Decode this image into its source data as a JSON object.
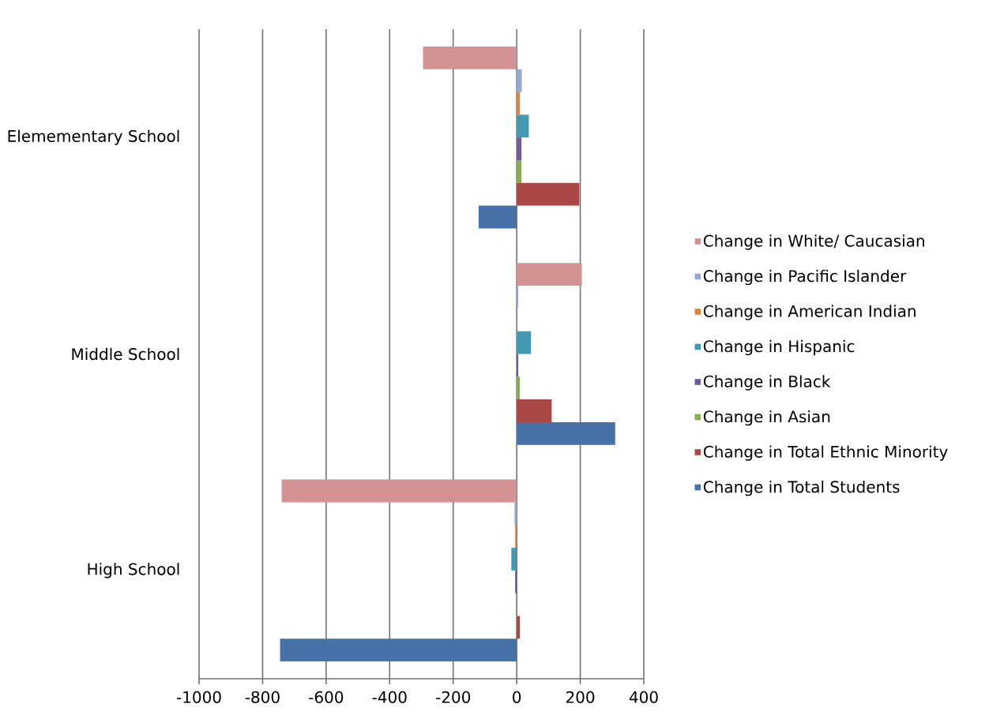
{
  "chart_data": {
    "type": "bar",
    "orientation": "horizontal",
    "categories": [
      "Elemementary School",
      "Middle School",
      "High School"
    ],
    "series": [
      {
        "name": "Change in White/ Caucasian",
        "color": "#d39392",
        "values": [
          -295,
          205,
          -740
        ]
      },
      {
        "name": "Change in Pacific Islander",
        "color": "#95a9d3",
        "values": [
          16,
          5,
          -7
        ]
      },
      {
        "name": "Change in American Indian",
        "color": "#e5833a",
        "values": [
          10,
          0,
          -5
        ]
      },
      {
        "name": "Change in Hispanic",
        "color": "#4299b1",
        "values": [
          38,
          45,
          -17
        ]
      },
      {
        "name": "Change in Black",
        "color": "#725a96",
        "values": [
          15,
          5,
          -5
        ]
      },
      {
        "name": "Change in Asian",
        "color": "#8aab4f",
        "values": [
          15,
          10,
          -2
        ]
      },
      {
        "name": "Change in Total Ethnic Minority",
        "color": "#a84744",
        "values": [
          197,
          110,
          10
        ]
      },
      {
        "name": "Change in Total Students",
        "color": "#4672a8",
        "values": [
          -120,
          310,
          -745
        ]
      }
    ],
    "xlim": [
      -1000,
      400
    ],
    "xticks": [
      -1000,
      -800,
      -600,
      -400,
      -200,
      0,
      200,
      400
    ],
    "grid": "x",
    "legend": "right"
  }
}
